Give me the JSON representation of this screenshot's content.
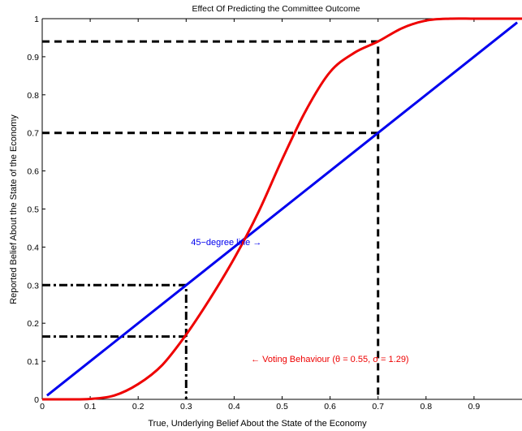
{
  "chart_data": {
    "type": "line",
    "title": "Effect Of Predicting the Committee Outcome",
    "xlabel": "True, Underlying Belief About the State of the Economy",
    "ylabel": "Reported Belief About the State of the Economy",
    "xlim": [
      0,
      1
    ],
    "ylim": [
      0,
      1
    ],
    "x_ticks": [
      {
        "value": 0,
        "label": "0"
      },
      {
        "value": 0.1,
        "label": "0.1"
      },
      {
        "value": 0.2,
        "label": "0.2"
      },
      {
        "value": 0.3,
        "label": "0.3"
      },
      {
        "value": 0.4,
        "label": "0.4"
      },
      {
        "value": 0.5,
        "label": "0.5"
      },
      {
        "value": 0.6,
        "label": "0.6"
      },
      {
        "value": 0.7,
        "label": "0.7"
      },
      {
        "value": 0.8,
        "label": "0.8"
      },
      {
        "value": 0.9,
        "label": "0.9"
      }
    ],
    "y_ticks": [
      {
        "value": 0,
        "label": "0"
      },
      {
        "value": 0.1,
        "label": "0.1"
      },
      {
        "value": 0.2,
        "label": "0.2"
      },
      {
        "value": 0.3,
        "label": "0.3"
      },
      {
        "value": 0.4,
        "label": "0.4"
      },
      {
        "value": 0.5,
        "label": "0.5"
      },
      {
        "value": 0.6,
        "label": "0.6"
      },
      {
        "value": 0.7,
        "label": "0.7"
      },
      {
        "value": 0.8,
        "label": "0.8"
      },
      {
        "value": 0.9,
        "label": "0.9"
      },
      {
        "value": 1,
        "label": "1"
      }
    ],
    "grid": false,
    "series": [
      {
        "color": "#0000ee",
        "x": [
          0.01,
          0.99
        ],
        "y": [
          0.01,
          0.99
        ]
      },
      {
        "color": "#ee0000",
        "x": [
          0.0,
          0.05,
          0.1,
          0.15,
          0.2,
          0.25,
          0.3,
          0.35,
          0.4,
          0.45,
          0.5,
          0.55,
          0.6,
          0.65,
          0.7,
          0.75,
          0.8,
          0.85,
          0.9,
          0.95,
          1.0
        ],
        "y": [
          0.0,
          0.0,
          0.001,
          0.01,
          0.04,
          0.09,
          0.17,
          0.265,
          0.37,
          0.49,
          0.63,
          0.76,
          0.86,
          0.91,
          0.94,
          0.975,
          0.995,
          1.0,
          1.0,
          1.0,
          1.0
        ]
      }
    ],
    "reference_lines": [
      {
        "style": "dashed",
        "x": [
          0.0,
          0.7,
          0.7
        ],
        "y": [
          0.94,
          0.94,
          0.0
        ]
      },
      {
        "style": "dashed",
        "x": [
          0.0,
          0.7
        ],
        "y": [
          0.7,
          0.7
        ]
      },
      {
        "style": "dashdot",
        "x": [
          0.0,
          0.3,
          0.3
        ],
        "y": [
          0.3,
          0.3,
          0.0
        ]
      },
      {
        "style": "dashdot",
        "x": [
          0.0,
          0.3
        ],
        "y": [
          0.165,
          0.165
        ]
      }
    ],
    "annotations": [
      {
        "text": "45−degree line →",
        "x": 0.31,
        "y": 0.405,
        "color": "#0000ee"
      },
      {
        "text": "← Voting Behaviour (θ = 0.55, σ = 1.29)",
        "x": 0.435,
        "y": 0.098,
        "color": "#ee0000"
      }
    ]
  }
}
